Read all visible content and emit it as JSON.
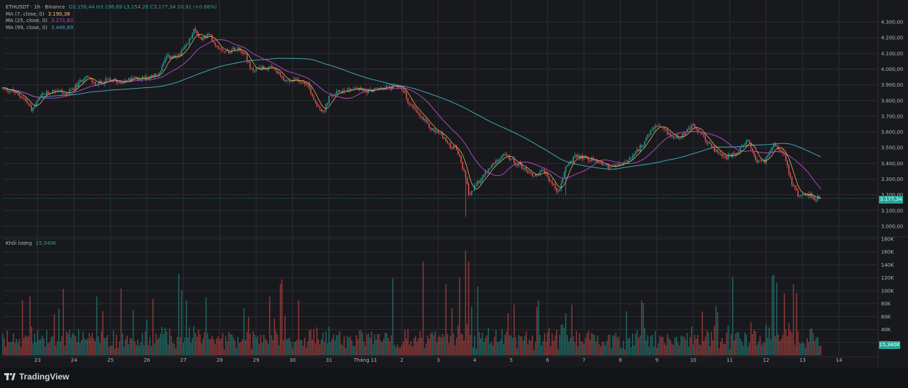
{
  "legend": {
    "symbol": "ETHUSDT · 1h · Binance",
    "ohlc": "O3.156,44 H3.196,69 L3.154,28 C3.177,34 20,91 (+0.66%)",
    "ma7_label": "MA (7, close, 0)",
    "ma7_value": "3.190,38",
    "ma25_label": "MA (25, close, 0)",
    "ma25_value": "3.271,83",
    "ma99_label": "MA (99, close, 0)",
    "ma99_value": "3.446,69"
  },
  "volume_legend": {
    "label": "Khối lượng",
    "value": "15,340K"
  },
  "price_tag": "3.177,34",
  "volume_tag": "15,340K",
  "brand": "TradingView",
  "colors": {
    "up": "#26a69a",
    "down": "#ef5350",
    "ma7": "#f7c46c",
    "ma25": "#b245c0",
    "ma99": "#3fa8b3",
    "background": "#18191d",
    "grid": "#2a2d33"
  },
  "chart_data": {
    "type": "candlestick",
    "symbol": "ETHUSDT",
    "interval": "1h",
    "exchange": "Binance",
    "x_ticks": [
      "23",
      "24",
      "25",
      "26",
      "27",
      "28",
      "29",
      "30",
      "31",
      "Tháng 11",
      "2",
      "3",
      "4",
      "5",
      "6",
      "7",
      "8",
      "9",
      "10",
      "11",
      "12",
      "13",
      "14"
    ],
    "price_ticks": [
      "4.300,00",
      "4.200,00",
      "4.100,00",
      "4.000,00",
      "3.900,00",
      "3.800,00",
      "3.700,00",
      "3.600,00",
      "3.500,00",
      "3.400,00",
      "3.300,00",
      "3.200,00",
      "3.100,00",
      "3.000,00"
    ],
    "price_tick_values": [
      4300,
      4200,
      4100,
      4000,
      3900,
      3800,
      3700,
      3600,
      3500,
      3400,
      3300,
      3200,
      3100,
      3000
    ],
    "volume_ticks": [
      "180K",
      "160K",
      "140K",
      "120K",
      "100K",
      "80K",
      "60K",
      "40K",
      "20K"
    ],
    "volume_tick_values": [
      180,
      160,
      140,
      120,
      100,
      80,
      60,
      40,
      20
    ],
    "ylim_price": [
      2950,
      4350
    ],
    "ylim_volume": [
      0,
      180
    ],
    "last_price": 3177.34,
    "last_volume_k": 15.34,
    "close_path": [
      {
        "day": 22.0,
        "p": 3880
      },
      {
        "day": 22.3,
        "p": 3860
      },
      {
        "day": 22.6,
        "p": 3820
      },
      {
        "day": 22.85,
        "p": 3740
      },
      {
        "day": 23.1,
        "p": 3830
      },
      {
        "day": 23.5,
        "p": 3870
      },
      {
        "day": 23.8,
        "p": 3840
      },
      {
        "day": 24.1,
        "p": 3900
      },
      {
        "day": 24.3,
        "p": 3960
      },
      {
        "day": 24.6,
        "p": 3900
      },
      {
        "day": 24.9,
        "p": 3930
      },
      {
        "day": 25.3,
        "p": 3920
      },
      {
        "day": 25.7,
        "p": 3940
      },
      {
        "day": 26.0,
        "p": 3950
      },
      {
        "day": 26.3,
        "p": 3960
      },
      {
        "day": 26.55,
        "p": 4080
      },
      {
        "day": 26.8,
        "p": 4070
      },
      {
        "day": 27.1,
        "p": 4150
      },
      {
        "day": 27.3,
        "p": 4250
      },
      {
        "day": 27.5,
        "p": 4190
      },
      {
        "day": 27.7,
        "p": 4220
      },
      {
        "day": 27.9,
        "p": 4150
      },
      {
        "day": 28.2,
        "p": 4110
      },
      {
        "day": 28.5,
        "p": 4140
      },
      {
        "day": 28.7,
        "p": 4100
      },
      {
        "day": 28.85,
        "p": 3990
      },
      {
        "day": 29.1,
        "p": 4010
      },
      {
        "day": 29.5,
        "p": 4000
      },
      {
        "day": 29.8,
        "p": 3920
      },
      {
        "day": 30.2,
        "p": 3930
      },
      {
        "day": 30.4,
        "p": 3910
      },
      {
        "day": 30.6,
        "p": 3800
      },
      {
        "day": 30.85,
        "p": 3720
      },
      {
        "day": 31.0,
        "p": 3820
      },
      {
        "day": 31.3,
        "p": 3860
      },
      {
        "day": 31.7,
        "p": 3880
      },
      {
        "day": 32.0,
        "p": 3860
      },
      {
        "day": 32.5,
        "p": 3880
      },
      {
        "day": 32.9,
        "p": 3890
      },
      {
        "day": 33.0,
        "p": 3880
      },
      {
        "day": 33.2,
        "p": 3780
      },
      {
        "day": 33.5,
        "p": 3700
      },
      {
        "day": 33.8,
        "p": 3620
      },
      {
        "day": 34.1,
        "p": 3580
      },
      {
        "day": 34.3,
        "p": 3510
      },
      {
        "day": 34.5,
        "p": 3490
      },
      {
        "day": 34.7,
        "p": 3350
      },
      {
        "day": 34.85,
        "p": 3200
      },
      {
        "day": 35.0,
        "p": 3250
      },
      {
        "day": 35.3,
        "p": 3340
      },
      {
        "day": 35.6,
        "p": 3420
      },
      {
        "day": 35.8,
        "p": 3460
      },
      {
        "day": 36.0,
        "p": 3420
      },
      {
        "day": 36.3,
        "p": 3380
      },
      {
        "day": 36.6,
        "p": 3320
      },
      {
        "day": 36.9,
        "p": 3350
      },
      {
        "day": 37.1,
        "p": 3280
      },
      {
        "day": 37.3,
        "p": 3210
      },
      {
        "day": 37.5,
        "p": 3380
      },
      {
        "day": 37.8,
        "p": 3450
      },
      {
        "day": 38.1,
        "p": 3430
      },
      {
        "day": 38.4,
        "p": 3410
      },
      {
        "day": 38.7,
        "p": 3380
      },
      {
        "day": 39.0,
        "p": 3390
      },
      {
        "day": 39.3,
        "p": 3430
      },
      {
        "day": 39.6,
        "p": 3520
      },
      {
        "day": 39.95,
        "p": 3640
      },
      {
        "day": 40.2,
        "p": 3610
      },
      {
        "day": 40.5,
        "p": 3560
      },
      {
        "day": 40.8,
        "p": 3600
      },
      {
        "day": 41.0,
        "p": 3640
      },
      {
        "day": 41.3,
        "p": 3560
      },
      {
        "day": 41.6,
        "p": 3480
      },
      {
        "day": 41.9,
        "p": 3440
      },
      {
        "day": 42.2,
        "p": 3460
      },
      {
        "day": 42.5,
        "p": 3560
      },
      {
        "day": 42.7,
        "p": 3420
      },
      {
        "day": 42.95,
        "p": 3410
      },
      {
        "day": 43.2,
        "p": 3530
      },
      {
        "day": 43.5,
        "p": 3460
      },
      {
        "day": 43.7,
        "p": 3280
      },
      {
        "day": 43.9,
        "p": 3190
      },
      {
        "day": 44.1,
        "p": 3210
      },
      {
        "day": 44.35,
        "p": 3177
      }
    ]
  }
}
